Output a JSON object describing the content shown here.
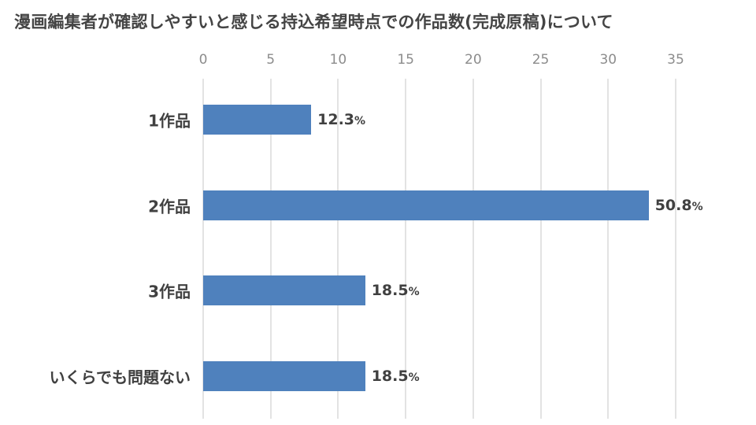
{
  "title": "漫画編集者が確認しやすいと感じる持込希望時点での作品数(完成原稿)について",
  "chart_data": {
    "type": "bar",
    "orientation": "horizontal",
    "title": "漫画編集者が確認しやすいと感じる持込希望時点での作品数(完成原稿)について",
    "xlabel": "",
    "ylabel": "",
    "xlim": [
      0,
      35
    ],
    "x_ticks": [
      0,
      5,
      10,
      15,
      20,
      25,
      30,
      35
    ],
    "x_tick_labels": [
      "0",
      "5",
      "10",
      "15",
      "20",
      "25",
      "30",
      "35"
    ],
    "grid": "vertical",
    "legend": null,
    "categories": [
      "1作品",
      "2作品",
      "3作品",
      "いくらでも問題ない"
    ],
    "values": [
      8,
      33,
      12,
      12
    ],
    "data_labels": [
      "12.3",
      "50.8",
      "18.5",
      "18.5"
    ],
    "data_label_suffix": "%",
    "percent_values": [
      12.3,
      50.8,
      18.5,
      18.5
    ],
    "bar_color": "#4f81bd"
  }
}
